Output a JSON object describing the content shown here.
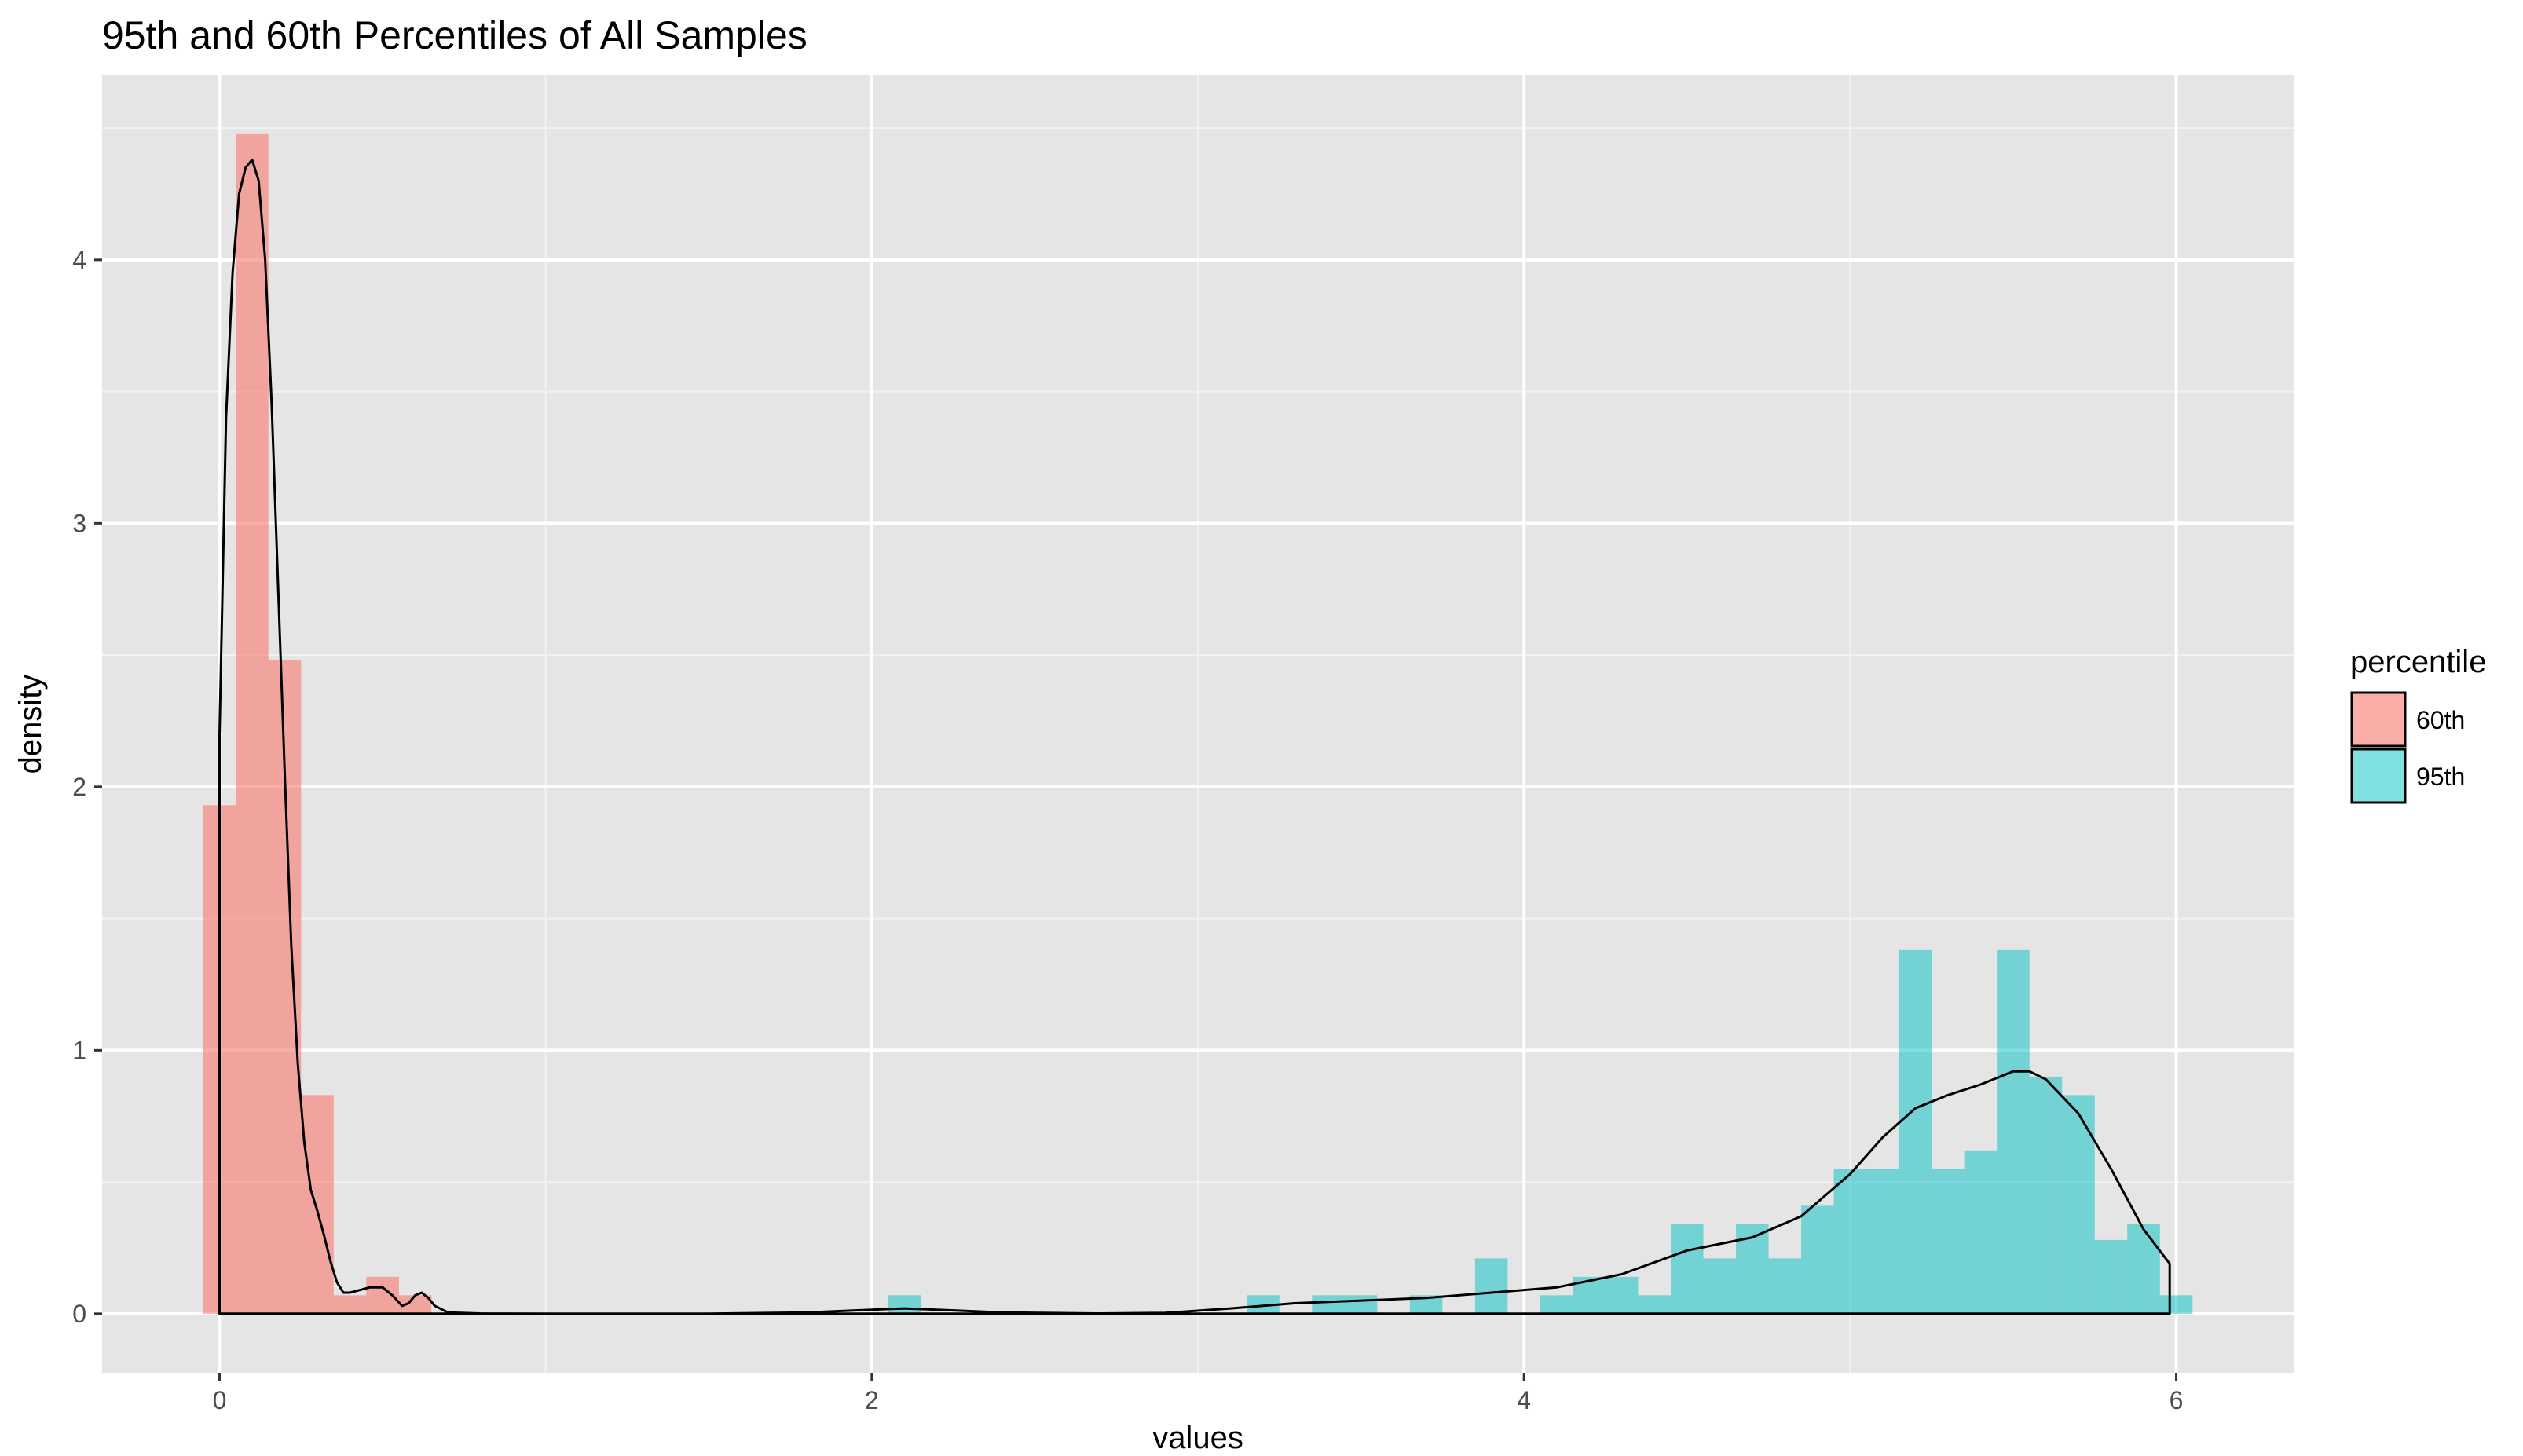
{
  "chart_data": {
    "type": "histogram",
    "title": "95th and 60th Percentiles of All Samples",
    "xlabel": "values",
    "ylabel": "density",
    "xlim": [
      -0.36,
      6.36
    ],
    "ylim": [
      -0.224,
      4.7
    ],
    "x_ticks": [
      0,
      2,
      4,
      6
    ],
    "y_ticks": [
      0,
      1,
      2,
      3,
      4
    ],
    "grid": true,
    "bin_width": 0.1,
    "legend": {
      "title": "percentile",
      "position": "right",
      "entries": [
        {
          "label": "60th",
          "color": "#F8766D"
        },
        {
          "label": "95th",
          "color": "#00BFC4"
        }
      ]
    },
    "series": [
      {
        "name": "60th",
        "color": "#F8766D",
        "bins": [
          {
            "x": 0.0,
            "density": 1.93
          },
          {
            "x": 0.1,
            "density": 4.48
          },
          {
            "x": 0.2,
            "density": 2.48
          },
          {
            "x": 0.3,
            "density": 0.83
          },
          {
            "x": 0.4,
            "density": 0.07
          },
          {
            "x": 0.5,
            "density": 0.14
          },
          {
            "x": 0.6,
            "density": 0.07
          }
        ]
      },
      {
        "name": "95th",
        "color": "#00BFC4",
        "bins": [
          {
            "x": 2.1,
            "density": 0.07
          },
          {
            "x": 3.2,
            "density": 0.07
          },
          {
            "x": 3.4,
            "density": 0.07
          },
          {
            "x": 3.5,
            "density": 0.07
          },
          {
            "x": 3.7,
            "density": 0.07
          },
          {
            "x": 3.9,
            "density": 0.21
          },
          {
            "x": 4.1,
            "density": 0.07
          },
          {
            "x": 4.2,
            "density": 0.14
          },
          {
            "x": 4.3,
            "density": 0.14
          },
          {
            "x": 4.4,
            "density": 0.07
          },
          {
            "x": 4.5,
            "density": 0.34
          },
          {
            "x": 4.6,
            "density": 0.21
          },
          {
            "x": 4.7,
            "density": 0.34
          },
          {
            "x": 4.8,
            "density": 0.21
          },
          {
            "x": 4.9,
            "density": 0.41
          },
          {
            "x": 5.0,
            "density": 0.55
          },
          {
            "x": 5.1,
            "density": 0.55
          },
          {
            "x": 5.2,
            "density": 1.38
          },
          {
            "x": 5.3,
            "density": 0.55
          },
          {
            "x": 5.4,
            "density": 0.62
          },
          {
            "x": 5.5,
            "density": 1.38
          },
          {
            "x": 5.6,
            "density": 0.9
          },
          {
            "x": 5.7,
            "density": 0.83
          },
          {
            "x": 5.8,
            "density": 0.28
          },
          {
            "x": 5.9,
            "density": 0.34
          },
          {
            "x": 6.0,
            "density": 0.07
          }
        ]
      }
    ],
    "density_curve": {
      "color": "#000000",
      "points": [
        [
          0.0,
          2.2
        ],
        [
          0.02,
          3.4
        ],
        [
          0.04,
          3.95
        ],
        [
          0.06,
          4.25
        ],
        [
          0.08,
          4.35
        ],
        [
          0.1,
          4.38
        ],
        [
          0.12,
          4.3
        ],
        [
          0.14,
          4.0
        ],
        [
          0.16,
          3.45
        ],
        [
          0.18,
          2.75
        ],
        [
          0.2,
          2.05
        ],
        [
          0.22,
          1.4
        ],
        [
          0.24,
          0.95
        ],
        [
          0.26,
          0.65
        ],
        [
          0.28,
          0.47
        ],
        [
          0.3,
          0.39
        ],
        [
          0.32,
          0.3
        ],
        [
          0.34,
          0.2
        ],
        [
          0.36,
          0.12
        ],
        [
          0.38,
          0.08
        ],
        [
          0.4,
          0.08
        ],
        [
          0.43,
          0.09
        ],
        [
          0.46,
          0.1
        ],
        [
          0.5,
          0.1
        ],
        [
          0.53,
          0.07
        ],
        [
          0.56,
          0.03
        ],
        [
          0.58,
          0.04
        ],
        [
          0.6,
          0.07
        ],
        [
          0.62,
          0.08
        ],
        [
          0.64,
          0.06
        ],
        [
          0.66,
          0.03
        ],
        [
          0.7,
          0.005
        ],
        [
          0.8,
          0.001
        ],
        [
          1.0,
          0.0
        ],
        [
          1.5,
          0.0
        ],
        [
          1.8,
          0.005
        ],
        [
          2.0,
          0.015
        ],
        [
          2.1,
          0.02
        ],
        [
          2.2,
          0.015
        ],
        [
          2.4,
          0.005
        ],
        [
          2.7,
          0.001
        ],
        [
          2.9,
          0.003
        ],
        [
          3.1,
          0.02
        ],
        [
          3.3,
          0.04
        ],
        [
          3.5,
          0.05
        ],
        [
          3.7,
          0.06
        ],
        [
          3.9,
          0.08
        ],
        [
          4.1,
          0.1
        ],
        [
          4.3,
          0.15
        ],
        [
          4.5,
          0.24
        ],
        [
          4.7,
          0.29
        ],
        [
          4.85,
          0.37
        ],
        [
          5.0,
          0.53
        ],
        [
          5.1,
          0.67
        ],
        [
          5.2,
          0.78
        ],
        [
          5.3,
          0.83
        ],
        [
          5.4,
          0.87
        ],
        [
          5.5,
          0.92
        ],
        [
          5.55,
          0.92
        ],
        [
          5.6,
          0.89
        ],
        [
          5.7,
          0.76
        ],
        [
          5.8,
          0.55
        ],
        [
          5.9,
          0.32
        ],
        [
          5.98,
          0.19
        ],
        [
          5.98,
          0.0
        ],
        [
          0.0,
          0.0
        ],
        [
          0.0,
          2.2
        ]
      ]
    }
  }
}
